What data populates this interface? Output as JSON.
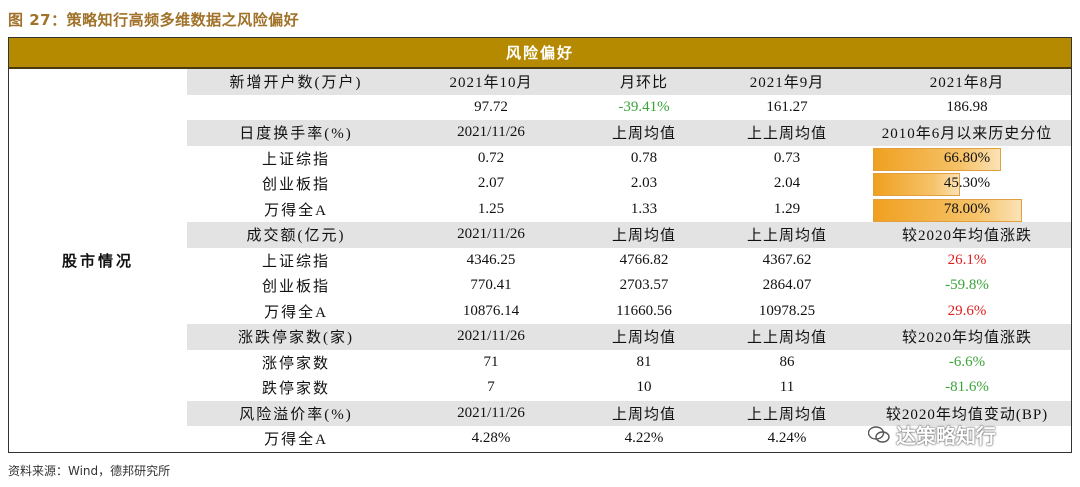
{
  "figure_title": "图 27：策略知行高频多维数据之风险偏好",
  "banner": "风险偏好",
  "left_label": "股市情况",
  "rows": [
    {
      "type": "hdr",
      "cells": [
        "新增开户数(万户)",
        "2021年10月",
        "月环比",
        "2021年9月",
        "2021年8月"
      ]
    },
    {
      "type": "data",
      "cells": [
        "",
        "97.72",
        "-39.41%",
        "161.27",
        "186.98"
      ],
      "colors": [
        "",
        "",
        "green",
        "",
        ""
      ]
    },
    {
      "type": "hdr",
      "cells": [
        "日度换手率(%)",
        "2021/11/26",
        "上周均值",
        "上上周均值",
        "2010年6月以来历史分位"
      ]
    },
    {
      "type": "bar",
      "cells": [
        "上证综指",
        "0.72",
        "0.78",
        "0.73",
        "66.80%"
      ],
      "fraction": 0.668
    },
    {
      "type": "bar",
      "cells": [
        "创业板指",
        "2.07",
        "2.03",
        "2.04",
        "45.30%"
      ],
      "fraction": 0.453
    },
    {
      "type": "bar",
      "cells": [
        "万得全A",
        "1.25",
        "1.33",
        "1.29",
        "78.00%"
      ],
      "fraction": 0.78
    },
    {
      "type": "hdr",
      "cells": [
        "成交额(亿元)",
        "2021/11/26",
        "上周均值",
        "上上周均值",
        "较2020年均值涨跌"
      ]
    },
    {
      "type": "data",
      "cells": [
        "上证综指",
        "4346.25",
        "4766.82",
        "4367.62",
        "26.1%"
      ],
      "colors": [
        "",
        "",
        "",
        "",
        "red"
      ]
    },
    {
      "type": "data",
      "cells": [
        "创业板指",
        "770.41",
        "2703.57",
        "2864.07",
        "-59.8%"
      ],
      "colors": [
        "",
        "",
        "",
        "",
        "green"
      ]
    },
    {
      "type": "data",
      "cells": [
        "万得全A",
        "10876.14",
        "11660.56",
        "10978.25",
        "29.6%"
      ],
      "colors": [
        "",
        "",
        "",
        "",
        "red"
      ]
    },
    {
      "type": "hdr",
      "cells": [
        "涨跌停家数(家)",
        "2021/11/26",
        "上周均值",
        "上上周均值",
        "较2020年均值涨跌"
      ]
    },
    {
      "type": "data",
      "cells": [
        "涨停家数",
        "71",
        "81",
        "86",
        "-6.6%"
      ],
      "colors": [
        "",
        "",
        "",
        "",
        "green"
      ]
    },
    {
      "type": "data",
      "cells": [
        "跌停家数",
        "7",
        "10",
        "11",
        "-81.6%"
      ],
      "colors": [
        "",
        "",
        "",
        "",
        "green"
      ]
    },
    {
      "type": "hdr",
      "cells": [
        "风险溢价率(%)",
        "2021/11/26",
        "上周均值",
        "上上周均值",
        "较2020年均值变动(BP)"
      ]
    },
    {
      "type": "data",
      "cells": [
        "万得全A",
        "4.28%",
        "4.22%",
        "4.24%",
        ""
      ],
      "colors": [
        "",
        "",
        "",
        "",
        ""
      ]
    }
  ],
  "source": "资料来源：Wind，德邦研究所",
  "watermark": "达策略知行",
  "colors": {
    "banner": "#b58a00",
    "title": "#a0722a",
    "positive": "#e02020",
    "negative": "#3aa43a",
    "header_row": "#e3e3e3"
  }
}
